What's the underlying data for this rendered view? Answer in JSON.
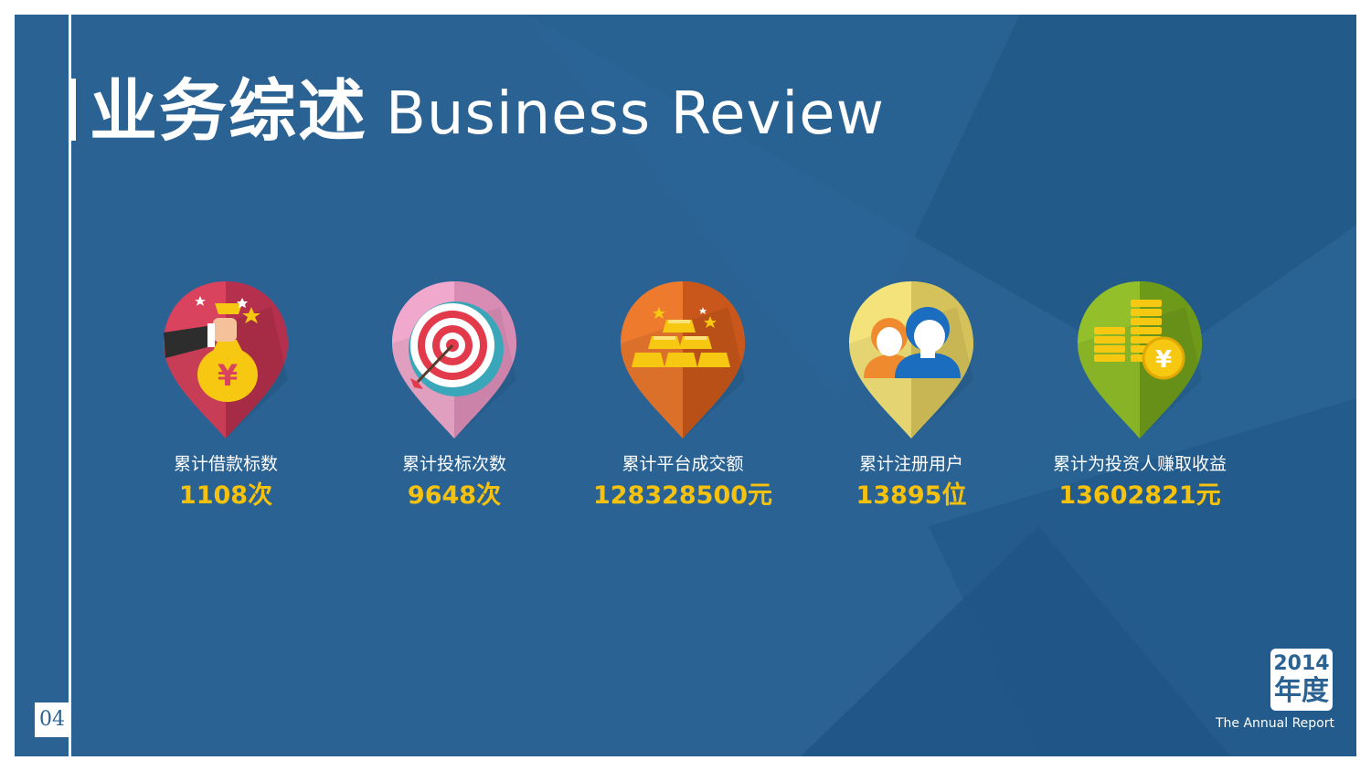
{
  "title": {
    "cn": "业务综述",
    "en": "Business Review"
  },
  "metrics": [
    {
      "label": "累计借款标数",
      "value": "1108次",
      "icon": "money-bag-icon",
      "color": "#d9435e"
    },
    {
      "label": "累计投标次数",
      "value": "9648次",
      "icon": "target-icon",
      "color": "#f0a9cd"
    },
    {
      "label": "累计平台成交额",
      "value": "128328500元",
      "icon": "gold-bars-icon",
      "color": "#ee7a2e"
    },
    {
      "label": "累计注册用户",
      "value": "13895位",
      "icon": "users-icon",
      "color": "#f3e37a"
    },
    {
      "label": "累计为投资人赚取收益",
      "value": "13602821元",
      "icon": "coins-icon",
      "color": "#92bf2a"
    }
  ],
  "page_number": "04",
  "badge": {
    "year": "2014",
    "year_suffix": "年度",
    "caption": "The Annual Report"
  },
  "colors": {
    "background": "#2a6293",
    "value_text": "#f6c20e"
  }
}
